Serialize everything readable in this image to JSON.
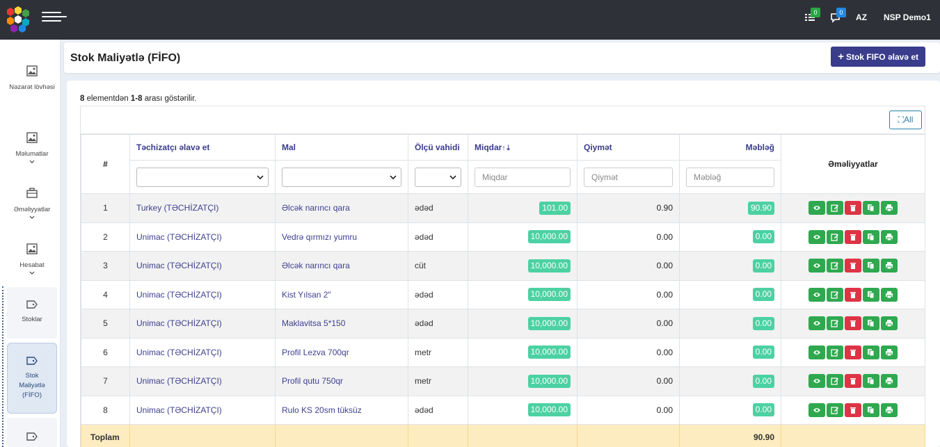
{
  "app": {
    "language": "AZ",
    "user": "NSP Demo1",
    "task_badge": "0",
    "message_badge": "0",
    "colors": {
      "topbar": "#2e3238",
      "primary": "#3a3c8c",
      "success": "#2fa84f",
      "danger": "#dc3545",
      "pill": "#4cd1a3",
      "total_row": "#fdecc0"
    }
  },
  "sidebar": {
    "items": [
      {
        "label": "Nəzarət lövhəsi",
        "icon": "image-icon"
      },
      {
        "label": "Məlumatlar",
        "icon": "image-icon"
      },
      {
        "label": "Əməliyyatlar",
        "icon": "briefcase-icon"
      },
      {
        "label": "Hesabat",
        "icon": "image-icon"
      },
      {
        "label": "Stoklar",
        "icon": "tag-icon"
      },
      {
        "label": "Stok Maliyətlə (FİFO)",
        "icon": "tag-icon"
      },
      {
        "label": "",
        "icon": "tag-icon"
      }
    ]
  },
  "header": {
    "title": "Stok Maliyətlə (FİFO)",
    "add_button": "Stok FIFO əlavə et"
  },
  "summary": {
    "count": "8",
    "prefix_text": " elementdən ",
    "range": "1-8",
    "suffix_text": " arası göstərilir."
  },
  "toolbar": {
    "all_label": "All"
  },
  "table": {
    "columns": {
      "num": "#",
      "supplier": "Təchizatçı əlavə et",
      "product": "Mal",
      "unit": "Ölçü vahidi",
      "quantity": "Miqdar",
      "price": "Qiymət",
      "amount": "Məbləğ",
      "operations": "Əməliyyatlar"
    },
    "filters": {
      "quantity_placeholder": "Miqdar",
      "price_placeholder": "Qiymət",
      "amount_placeholder": "Məbləğ"
    },
    "rows": [
      {
        "num": "1",
        "supplier": "Turkey (TƏCHİZATÇI)",
        "product": "Əlcək narıncı qara",
        "unit": "ədəd",
        "quantity": "101.00",
        "price": "0.90",
        "amount": "90.90"
      },
      {
        "num": "2",
        "supplier": "Unimac (TƏCHİZATÇI)",
        "product": "Vedrə qırmızı yumru",
        "unit": "ədəd",
        "quantity": "10,000.00",
        "price": "0.00",
        "amount": "0.00"
      },
      {
        "num": "3",
        "supplier": "Unimac (TƏCHİZATÇI)",
        "product": "Əlcək narıncı qara",
        "unit": "cüt",
        "quantity": "10,000.00",
        "price": "0.00",
        "amount": "0.00"
      },
      {
        "num": "4",
        "supplier": "Unimac (TƏCHİZATÇI)",
        "product": "Kist Yılsan 2\"",
        "unit": "ədəd",
        "quantity": "10,000.00",
        "price": "0.00",
        "amount": "0.00"
      },
      {
        "num": "5",
        "supplier": "Unimac (TƏCHİZATÇI)",
        "product": "Maklavitsa 5*150",
        "unit": "ədəd",
        "quantity": "10,000.00",
        "price": "0.00",
        "amount": "0.00"
      },
      {
        "num": "6",
        "supplier": "Unimac (TƏCHİZATÇI)",
        "product": "Profil Lezva 700qr",
        "unit": "metr",
        "quantity": "10,000.00",
        "price": "0.00",
        "amount": "0.00"
      },
      {
        "num": "7",
        "supplier": "Unimac (TƏCHİZATÇI)",
        "product": "Profil qutu 750qr",
        "unit": "metr",
        "quantity": "10,000.00",
        "price": "0.00",
        "amount": "0.00"
      },
      {
        "num": "8",
        "supplier": "Unimac (TƏCHİZATÇI)",
        "product": "Rulo KS 20sm tüksüz",
        "unit": "ədəd",
        "quantity": "10,000.00",
        "price": "0.00",
        "amount": "0.00"
      }
    ],
    "row_actions": [
      "eye-icon",
      "edit-icon",
      "trash-icon",
      "copy-icon",
      "print-icon"
    ],
    "total": {
      "label": "Toplam",
      "amount": "90.90"
    }
  }
}
